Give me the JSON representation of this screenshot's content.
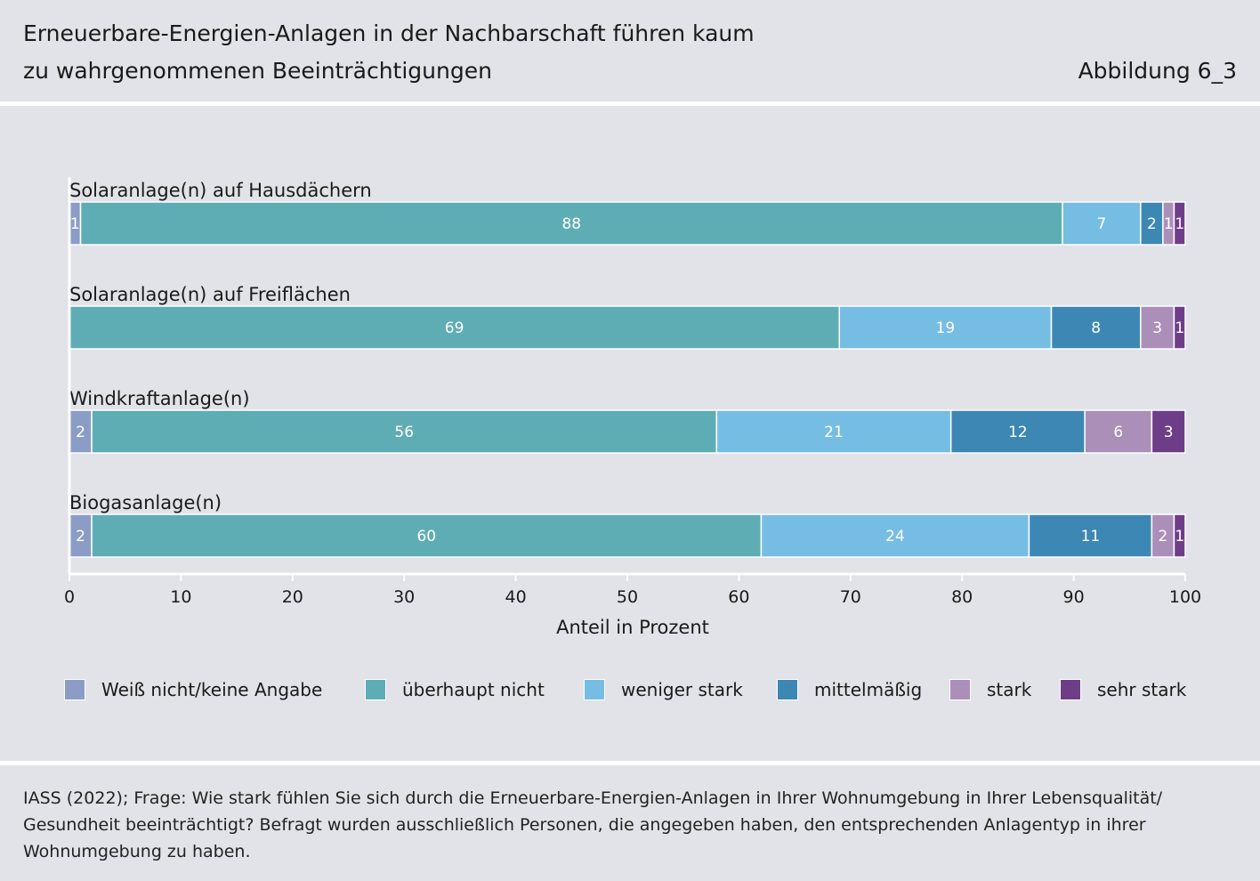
{
  "header": {
    "title_line1": "Erneuerbare-Energien-Anlagen in der Nachbarschaft führen kaum",
    "title_line2": "zu wahrgenommenen Beeinträchtigungen",
    "figure_label": "Abbildung 6_3"
  },
  "chart_data": {
    "type": "bar",
    "orientation": "horizontal",
    "stacked": true,
    "title": "Erneuerbare-Energien-Anlagen in der Nachbarschaft führen kaum zu wahrgenommenen Beeinträchtigungen",
    "xlabel": "Anteil in Prozent",
    "ylabel": "",
    "xlim": [
      0,
      100
    ],
    "xticks": [
      0,
      10,
      20,
      30,
      40,
      50,
      60,
      70,
      80,
      90,
      100
    ],
    "grid": false,
    "legend_position": "bottom",
    "categories": [
      "Solaranlage(n) auf Hausdächern",
      "Solaranlage(n) auf Freiflächen",
      "Windkraftanlage(n)",
      "Biogasanlage(n)"
    ],
    "series": [
      {
        "name": "Weiß nicht/keine Angabe",
        "color": "#8b9dc6",
        "values": [
          1,
          0,
          2,
          2
        ]
      },
      {
        "name": "überhaupt nicht",
        "color": "#5fadb4",
        "values": [
          88,
          69,
          56,
          60
        ]
      },
      {
        "name": "weniger stark",
        "color": "#76bde4",
        "values": [
          7,
          19,
          21,
          24
        ]
      },
      {
        "name": "mittelmäßig",
        "color": "#3d87b5",
        "values": [
          2,
          8,
          12,
          11
        ]
      },
      {
        "name": "stark",
        "color": "#ab8fb8",
        "values": [
          1,
          3,
          6,
          2
        ]
      },
      {
        "name": "sehr stark",
        "color": "#6e3d88",
        "values": [
          1,
          1,
          3,
          1
        ]
      }
    ]
  },
  "source": {
    "text": "IASS (2022); Frage: Wie stark fühlen Sie sich durch die Erneuerbare-Energien-Anlagen in Ihrer Wohnumgebung in Ihrer Lebensqualität/ Gesundheit beeinträchtigt? Befragt wurden ausschließlich Personen, die angegeben haben, den entsprechenden Anlagentyp in ihrer Wohnumgebung zu haben."
  },
  "colors": {
    "background": "#e2e3e8",
    "divider": "#ffffff",
    "bar_label": "#ffffff",
    "axis": "#ffffff"
  }
}
